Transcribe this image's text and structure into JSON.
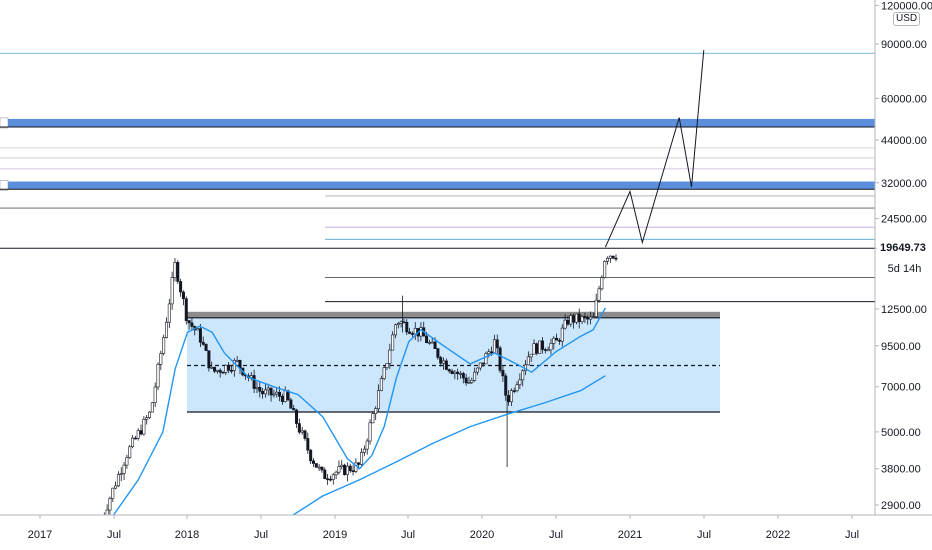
{
  "chart_data": {
    "type": "candlestick",
    "unit": "USD",
    "scale": "log",
    "ylim": [
      2600,
      125000
    ],
    "x_ticks": [
      "2017",
      "Jul",
      "2018",
      "Jul",
      "2019",
      "Jul",
      "2020",
      "Jul",
      "2021",
      "Jul",
      "2022",
      "Jul"
    ],
    "y_ticks": [
      2900,
      3800,
      5000,
      7000,
      9500,
      12500,
      19649.73,
      24500,
      32000,
      44000,
      60000,
      90000,
      120000
    ],
    "y_tick_labels": [
      "2900.00",
      "3800.00",
      "5000.00",
      "7000.00",
      "9500.00",
      "12500.00",
      "19649.73",
      "24500.00",
      "32000.00",
      "44000.00",
      "60000.00",
      "90000.00",
      "120000.00"
    ],
    "last_price": "19649.73",
    "countdown": "5d 14h",
    "grid": false,
    "range_box": {
      "top": 11700,
      "bottom": 5800,
      "mid": 8200,
      "x_start": "2018-01",
      "x_end": "2020-12"
    },
    "resistance_zones": [
      {
        "low": 48500,
        "high": 51500
      },
      {
        "low": 30500,
        "high": 32300
      }
    ],
    "horizontal_levels": [
      19649.73,
      26500,
      35500,
      38500,
      41500,
      84000,
      15800,
      13200,
      21000,
      23000
    ],
    "projection_path": [
      {
        "x": "2020-11",
        "y": 19800
      },
      {
        "x": "2021-01",
        "y": 30000
      },
      {
        "x": "2021-02",
        "y": 20500
      },
      {
        "x": "2021-05",
        "y": 52000
      },
      {
        "x": "2021-06",
        "y": 31000
      },
      {
        "x": "2021-07",
        "y": 86000
      }
    ],
    "series": [
      {
        "type": "ma_fast",
        "values": [
          [
            "2017-07",
            2700
          ],
          [
            "2017-09",
            3500
          ],
          [
            "2017-11",
            5000
          ],
          [
            "2017-12",
            8000
          ],
          [
            "2018-01",
            10500
          ],
          [
            "2018-02",
            11000
          ],
          [
            "2018-03",
            10500
          ],
          [
            "2018-04",
            9000
          ],
          [
            "2018-05",
            8200
          ],
          [
            "2018-06",
            7500
          ],
          [
            "2018-08",
            7000
          ],
          [
            "2018-10",
            6600
          ],
          [
            "2018-12",
            5600
          ],
          [
            "2019-02",
            4100
          ],
          [
            "2019-03",
            3800
          ],
          [
            "2019-04",
            4200
          ],
          [
            "2019-05",
            5200
          ],
          [
            "2019-06",
            7500
          ],
          [
            "2019-07",
            9800
          ],
          [
            "2019-08",
            10700
          ],
          [
            "2019-10",
            9400
          ],
          [
            "2019-12",
            8300
          ],
          [
            "2020-02",
            9000
          ],
          [
            "2020-04",
            8200
          ],
          [
            "2020-05",
            7800
          ],
          [
            "2020-07",
            9100
          ],
          [
            "2020-09",
            10200
          ],
          [
            "2020-10",
            10700
          ],
          [
            "2020-11",
            12600
          ]
        ]
      },
      {
        "type": "ma_slow",
        "values": [
          [
            "2018-09",
            2600
          ],
          [
            "2018-12",
            3100
          ],
          [
            "2019-03",
            3500
          ],
          [
            "2019-06",
            4000
          ],
          [
            "2019-09",
            4600
          ],
          [
            "2019-12",
            5200
          ],
          [
            "2020-03",
            5700
          ],
          [
            "2020-06",
            6200
          ],
          [
            "2020-09",
            6800
          ],
          [
            "2020-11",
            7600
          ]
        ]
      }
    ]
  }
}
